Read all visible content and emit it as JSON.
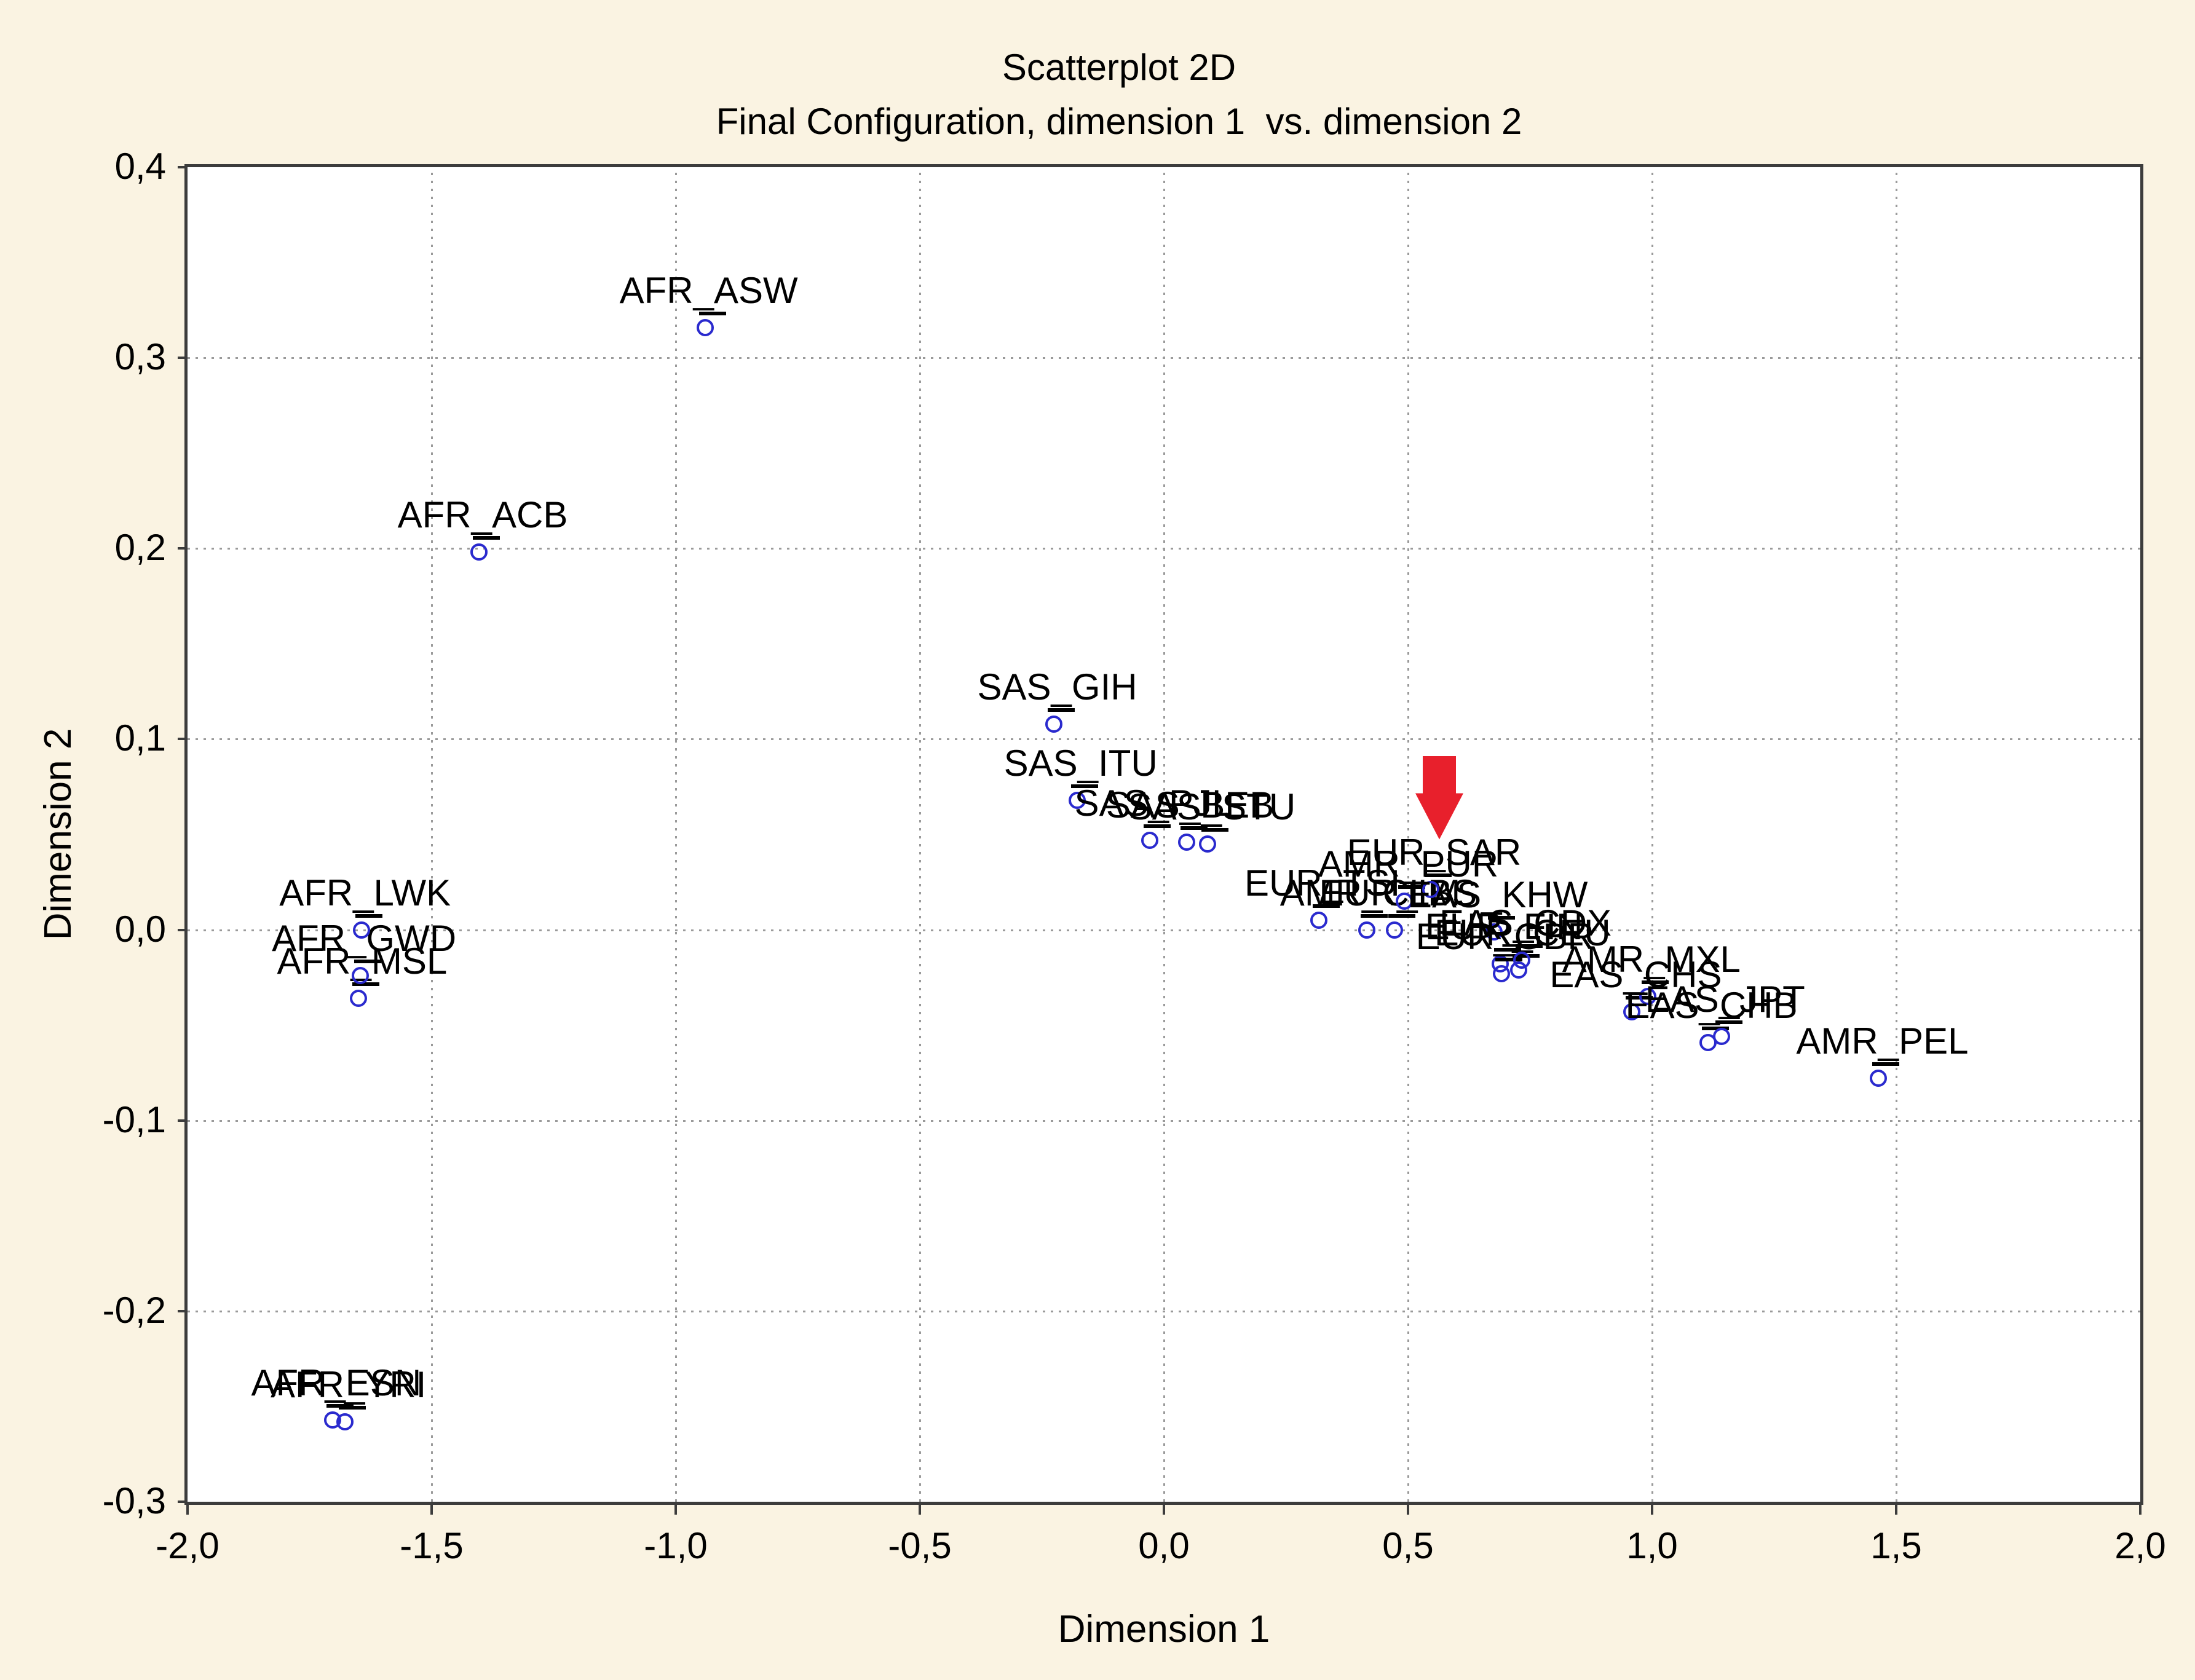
{
  "figure": {
    "title_line1": "Scatterplot 2D",
    "title_line2": "Final Configuration, dimension 1  vs. dimension 2"
  },
  "axes": {
    "x": {
      "title": "Dimension 1",
      "min": -2.0,
      "max": 2.0,
      "tick_values": [
        -2.0,
        -1.5,
        -1.0,
        -0.5,
        0.0,
        0.5,
        1.0,
        1.5,
        2.0
      ],
      "tick_labels": [
        "-2,0",
        "-1,5",
        "-1,0",
        "-0,5",
        "0,0",
        "0,5",
        "1,0",
        "1,5",
        "2,0"
      ],
      "gridline_values": [
        -1.5,
        -1.0,
        -0.5,
        0.0,
        0.5,
        1.0,
        1.5
      ]
    },
    "y": {
      "title": "Dimension 2",
      "min": -0.3,
      "max": 0.4,
      "tick_values": [
        0.4,
        0.3,
        0.2,
        0.1,
        0.0,
        -0.1,
        -0.2,
        -0.3
      ],
      "tick_labels": [
        "0,4",
        "0,3",
        "0,2",
        "0,1",
        "0,0",
        "-0,1",
        "-0,2",
        "-0,3"
      ],
      "gridline_values": [
        0.3,
        0.2,
        0.1,
        0.0,
        -0.1,
        -0.2
      ]
    }
  },
  "chart_data": {
    "type": "scatter",
    "title": "Scatterplot 2D",
    "subtitle": "Final Configuration, dimension 1  vs. dimension 2",
    "xlabel": "Dimension 1",
    "ylabel": "Dimension 2",
    "xlim": [
      -2.0,
      2.0
    ],
    "ylim": [
      -0.3,
      0.4
    ],
    "grid": true,
    "decimal_separator": ",",
    "marker": {
      "shape": "open-circle",
      "color": "#2a2ace"
    },
    "points": [
      {
        "label": "AFR_ESN",
        "x": -1.703,
        "y": -0.257
      },
      {
        "label": "AFR_YRI",
        "x": -1.678,
        "y": -0.258
      },
      {
        "label": "AFR_MSL",
        "x": -1.65,
        "y": -0.036
      },
      {
        "label": "AFR_GWD",
        "x": -1.646,
        "y": -0.024
      },
      {
        "label": "AFR_LWK",
        "x": -1.644,
        "y": 0.0
      },
      {
        "label": "AFR_ACB",
        "x": -1.403,
        "y": 0.198
      },
      {
        "label": "AFR_ASW",
        "x": -0.94,
        "y": 0.316
      },
      {
        "label": "SAS_GIH",
        "x": -0.226,
        "y": 0.108
      },
      {
        "label": "SAS_ITU",
        "x": -0.178,
        "y": 0.068
      },
      {
        "label": "SAS_PJL",
        "x": -0.029,
        "y": 0.047
      },
      {
        "label": "SAS_BEB",
        "x": 0.046,
        "y": 0.046
      },
      {
        "label": "SAS_STU",
        "x": 0.09,
        "y": 0.045
      },
      {
        "label": "EUR_TSI",
        "x": 0.317,
        "y": 0.005
      },
      {
        "label": "AMR_CLM",
        "x": 0.415,
        "y": 0.0
      },
      {
        "label": "EUR_IBS",
        "x": 0.472,
        "y": 0.0
      },
      {
        "label": "AMR_PUR",
        "x": 0.493,
        "y": 0.015
      },
      {
        "label": "EUR_SAR",
        "x": 0.546,
        "y": 0.021
      },
      {
        "label": "EAS_KHW",
        "x": 0.676,
        "y": -0.001
      },
      {
        "label": "EUR_FIN",
        "x": 0.689,
        "y": -0.018
      },
      {
        "label": "EUR_GBR",
        "x": 0.691,
        "y": -0.023
      },
      {
        "label": "EUR_CEU",
        "x": 0.727,
        "y": -0.021
      },
      {
        "label": "EAS_CDX",
        "x": 0.733,
        "y": -0.016
      },
      {
        "label": "EAS_CHS",
        "x": 0.959,
        "y": -0.043
      },
      {
        "label": "AMR_MXL",
        "x": 0.991,
        "y": -0.035
      },
      {
        "label": "EAS_CHB",
        "x": 1.114,
        "y": -0.059
      },
      {
        "label": "EAS_JPT",
        "x": 1.142,
        "y": -0.056
      },
      {
        "label": "AMR_PEL",
        "x": 1.464,
        "y": -0.078
      }
    ],
    "annotations": [
      {
        "type": "arrow",
        "direction": "down",
        "color": "#e8202c",
        "points_to_label": "EUR_SAR",
        "x": 0.564,
        "y_from": 0.091,
        "y_to": 0.047
      }
    ]
  },
  "colors": {
    "background": "#faf3e2",
    "plot_background": "#ffffff",
    "frame": "#3c3c3c",
    "grid": "#9a9a9a",
    "marker": "#2a2ace",
    "text": "#000000",
    "arrow": "#e8202c"
  }
}
